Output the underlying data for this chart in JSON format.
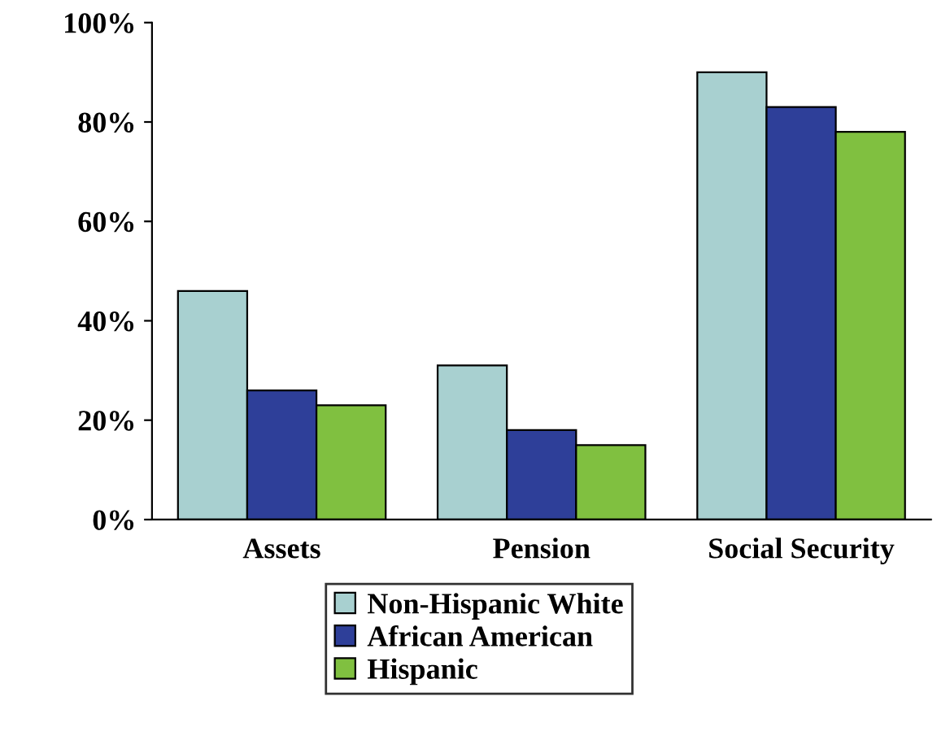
{
  "chart_data": {
    "type": "bar",
    "categories": [
      "Assets",
      "Pension",
      "Social Security"
    ],
    "series": [
      {
        "name": "Non-Hispanic White",
        "color": "#a8d0d0",
        "values": [
          46,
          31,
          90
        ]
      },
      {
        "name": "African American",
        "color": "#2e3f99",
        "values": [
          26,
          18,
          83
        ]
      },
      {
        "name": "Hispanic",
        "color": "#80c040",
        "values": [
          23,
          15,
          78
        ]
      }
    ],
    "ylim": [
      0,
      100
    ],
    "yticks": [
      {
        "value": 0,
        "label": "0%"
      },
      {
        "value": 20,
        "label": "20%"
      },
      {
        "value": 40,
        "label": "40%"
      },
      {
        "value": 60,
        "label": "60%"
      },
      {
        "value": 80,
        "label": "80%"
      },
      {
        "value": 100,
        "label": "100%"
      }
    ],
    "grid": false,
    "legend": "bottom"
  }
}
